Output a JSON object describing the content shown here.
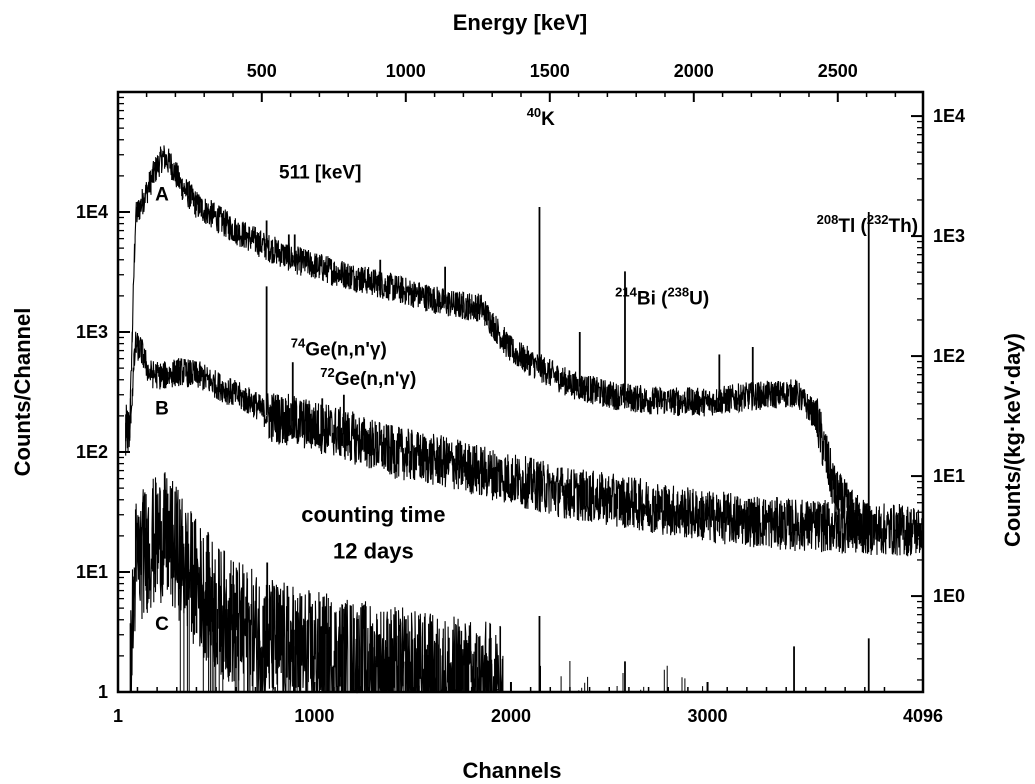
{
  "chart_data": {
    "type": "line",
    "x": {
      "label": "Channels",
      "range": [
        1,
        4096
      ],
      "ticks": [
        {
          "value": 1,
          "label": "1"
        },
        {
          "value": 1000,
          "label": "1000"
        },
        {
          "value": 2000,
          "label": "2000"
        },
        {
          "value": 3000,
          "label": "3000"
        },
        {
          "value": 4096,
          "label": "4096"
        }
      ]
    },
    "x_top": {
      "label": "Energy [keV]",
      "channels_per_keV": 1.465,
      "ticks": [
        {
          "value": 500,
          "label": "500"
        },
        {
          "value": 1000,
          "label": "1000"
        },
        {
          "value": 1500,
          "label": "1500"
        },
        {
          "value": 2000,
          "label": "2000"
        },
        {
          "value": 2500,
          "label": "2500"
        }
      ]
    },
    "y": {
      "label": "Counts/Channel",
      "scale": "log",
      "range": [
        1,
        100000
      ],
      "ticks": [
        {
          "value": 1,
          "label": "1"
        },
        {
          "value": 10,
          "label": "1E1"
        },
        {
          "value": 100,
          "label": "1E2"
        },
        {
          "value": 1000,
          "label": "1E3"
        },
        {
          "value": 10000,
          "label": "1E4"
        }
      ]
    },
    "y_right": {
      "label": "Counts/(kg·keV·day)",
      "scale": "log",
      "ticks": [
        {
          "value": 1,
          "left_equiv": 6.3,
          "label": "1E0"
        },
        {
          "value": 10,
          "left_equiv": 63,
          "label": "1E1"
        },
        {
          "value": 100,
          "left_equiv": 630,
          "label": "1E2"
        },
        {
          "value": 1000,
          "left_equiv": 6300,
          "label": "1E3"
        },
        {
          "value": 10000,
          "left_equiv": 63000,
          "label": "1E4"
        }
      ]
    },
    "series": [
      {
        "name": "A",
        "continuum": [
          [
            40,
            150
          ],
          [
            60,
            150
          ],
          [
            90,
            9000
          ],
          [
            140,
            14000
          ],
          [
            200,
            24000
          ],
          [
            230,
            29000
          ],
          [
            270,
            25000
          ],
          [
            320,
            17000
          ],
          [
            400,
            11500
          ],
          [
            500,
            9000
          ],
          [
            600,
            7000
          ],
          [
            750,
            5200
          ],
          [
            900,
            4000
          ],
          [
            1100,
            3200
          ],
          [
            1300,
            2600
          ],
          [
            1500,
            2100
          ],
          [
            1700,
            1700
          ],
          [
            1850,
            1600
          ],
          [
            2000,
            700
          ],
          [
            2150,
            500
          ],
          [
            2300,
            370
          ],
          [
            2500,
            300
          ],
          [
            2700,
            270
          ],
          [
            3000,
            260
          ],
          [
            3200,
            290
          ],
          [
            3450,
            310
          ],
          [
            3550,
            200
          ],
          [
            3650,
            45
          ],
          [
            3750,
            28
          ],
          [
            3820,
            24
          ]
        ],
        "peaks": [
          [
            757,
            8500
          ],
          [
            870,
            6500
          ],
          [
            900,
            6500
          ],
          [
            1335,
            4000
          ],
          [
            1665,
            3500
          ],
          [
            2145,
            11000
          ],
          [
            2350,
            1000
          ],
          [
            2580,
            3200
          ],
          [
            2850,
            200
          ],
          [
            3060,
            650
          ],
          [
            3230,
            750
          ],
          [
            3820,
            10000
          ]
        ]
      },
      {
        "name": "B",
        "continuum": [
          [
            40,
            150
          ],
          [
            60,
            150
          ],
          [
            90,
            780
          ],
          [
            120,
            700
          ],
          [
            160,
            450
          ],
          [
            230,
            430
          ],
          [
            320,
            470
          ],
          [
            420,
            430
          ],
          [
            550,
            330
          ],
          [
            700,
            250
          ],
          [
            760,
            200
          ],
          [
            900,
            180
          ],
          [
            1100,
            150
          ],
          [
            1400,
            100
          ],
          [
            1700,
            80
          ],
          [
            2000,
            60
          ],
          [
            2300,
            45
          ],
          [
            2600,
            38
          ],
          [
            3000,
            29
          ],
          [
            3400,
            25
          ],
          [
            3800,
            23
          ],
          [
            4096,
            22
          ]
        ],
        "peaks": [
          [
            757,
            2400
          ],
          [
            890,
            560
          ],
          [
            1040,
            280
          ],
          [
            1150,
            300
          ]
        ]
      },
      {
        "name": "C",
        "continuum": [
          [
            60,
            1
          ],
          [
            90,
            12
          ],
          [
            150,
            16
          ],
          [
            230,
            20
          ],
          [
            300,
            15
          ],
          [
            380,
            9
          ],
          [
            500,
            5
          ],
          [
            650,
            3.2
          ],
          [
            800,
            2.5
          ],
          [
            1000,
            2.0
          ],
          [
            1300,
            1.6
          ],
          [
            1600,
            1.3
          ],
          [
            1900,
            1.1
          ],
          [
            1960,
            1
          ]
        ],
        "peaks": [
          [
            760,
            12
          ],
          [
            2145,
            4.3
          ],
          [
            3440,
            2.4
          ],
          [
            3820,
            2.8
          ],
          [
            2580,
            1.8
          ]
        ]
      }
    ],
    "annotations": [
      {
        "text": "A",
        "channel": 190,
        "counts": 12500
      },
      {
        "text": "B",
        "channel": 190,
        "counts": 205
      },
      {
        "text": "C",
        "channel": 190,
        "counts": 3.3
      },
      {
        "text": "511 [keV]",
        "channel": 820,
        "counts": 19000
      },
      {
        "text": "40K",
        "parts": [
          {
            "sup": "40"
          },
          {
            "t": "K"
          }
        ],
        "channel": 2080,
        "counts": 53000
      },
      {
        "text": "214Bi (238U)",
        "parts": [
          {
            "sup": "214"
          },
          {
            "t": "Bi ("
          },
          {
            "sup": "238"
          },
          {
            "t": "U)"
          }
        ],
        "channel": 2530,
        "counts": 1700
      },
      {
        "text": "208Tl (232Th)",
        "parts": [
          {
            "sup": "208"
          },
          {
            "t": "Tl ("
          },
          {
            "sup": "232"
          },
          {
            "t": "Th)"
          }
        ],
        "channel": 3555,
        "counts": 6800
      },
      {
        "text": "74Ge(n,n'γ)",
        "parts": [
          {
            "sup": "74"
          },
          {
            "t": "Ge(n,n'γ)"
          }
        ],
        "channel": 880,
        "counts": 640
      },
      {
        "text": "72Ge(n,n'γ)",
        "parts": [
          {
            "sup": "72"
          },
          {
            "t": "Ge(n,n'γ)"
          }
        ],
        "channel": 1030,
        "counts": 360
      },
      {
        "text": "counting time",
        "channel": 1300,
        "counts": 26
      },
      {
        "text": "12 days",
        "channel": 1300,
        "counts": 13
      }
    ]
  }
}
